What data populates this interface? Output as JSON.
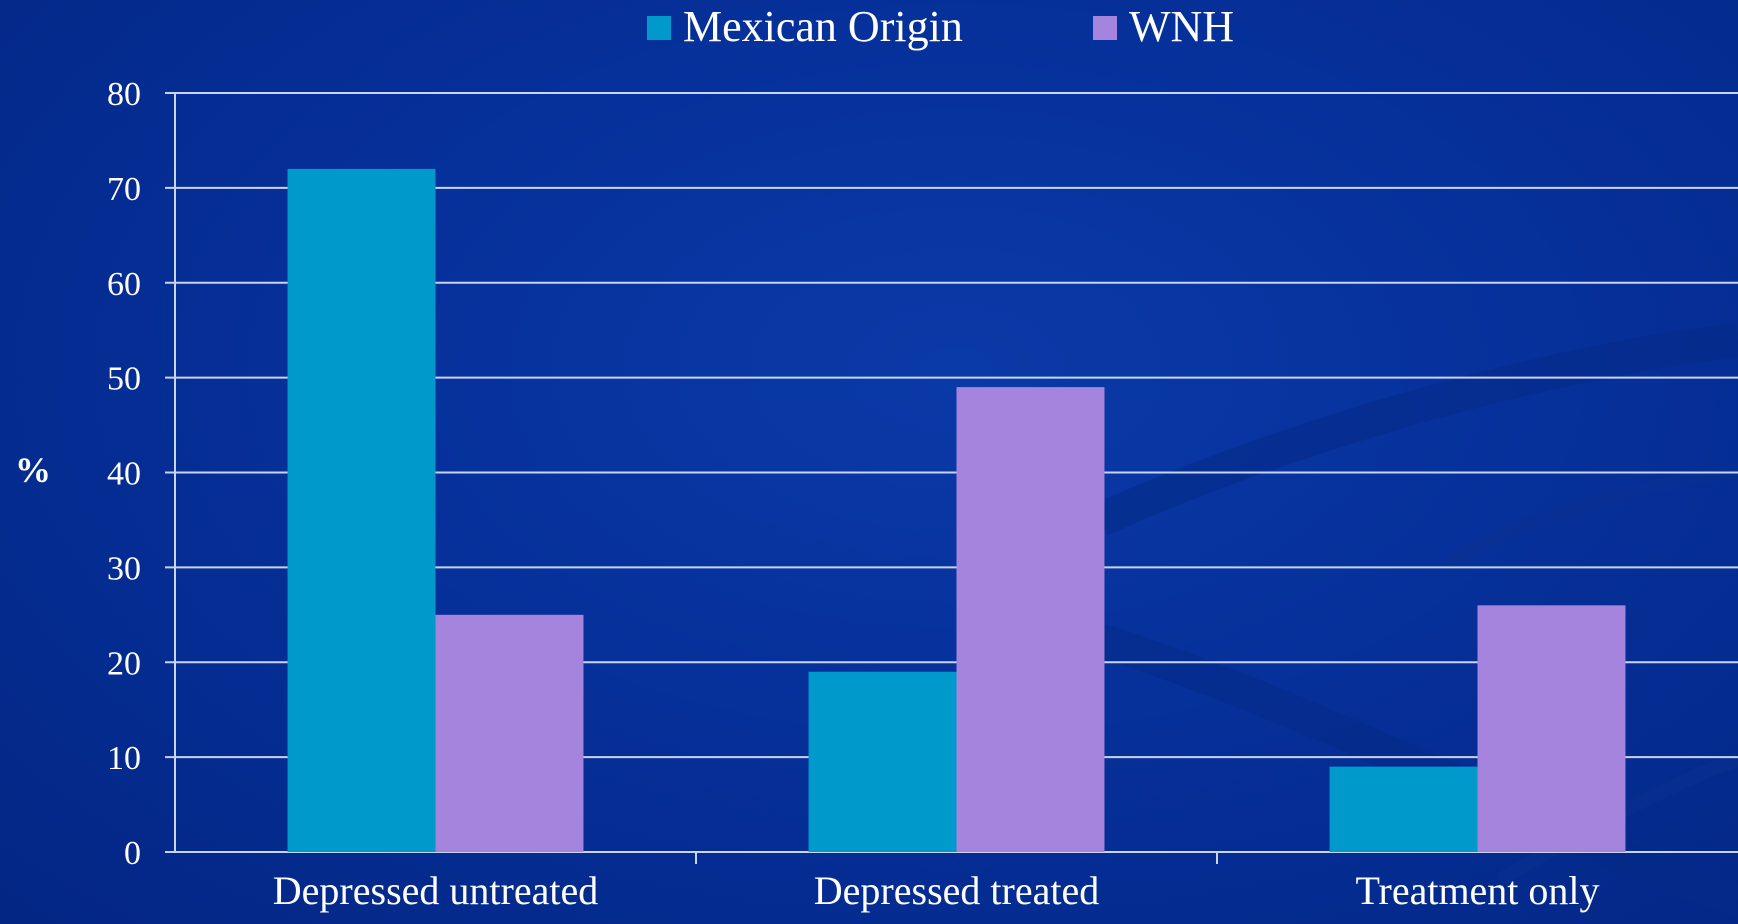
{
  "chart_data": {
    "type": "bar",
    "categories": [
      "Depressed untreated",
      "Depressed treated",
      "Treatment only"
    ],
    "series": [
      {
        "name": "Mexican Origin",
        "values": [
          72,
          19,
          9
        ],
        "color": "#0099cc"
      },
      {
        "name": "WNH",
        "values": [
          25,
          49,
          26
        ],
        "color": "#a584dd"
      }
    ],
    "ylabel": "%",
    "ylim": [
      0,
      80
    ],
    "yticks": [
      0,
      10,
      20,
      30,
      40,
      50,
      60,
      70,
      80
    ],
    "grid": true,
    "legend_position": "top-center"
  }
}
